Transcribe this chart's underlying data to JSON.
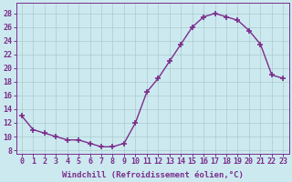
{
  "x": [
    0,
    1,
    2,
    3,
    4,
    5,
    6,
    7,
    8,
    9,
    10,
    11,
    12,
    13,
    14,
    15,
    16,
    17,
    18,
    19,
    20,
    21,
    22,
    23
  ],
  "y": [
    13,
    11,
    10.5,
    10,
    9.5,
    9.5,
    9,
    8.5,
    8.5,
    9,
    12,
    16.5,
    18.5,
    21,
    23.5,
    26,
    27.5,
    28,
    27.5,
    27,
    25.5,
    23.5,
    19,
    18.5
  ],
  "line_color": "#7b2d8b",
  "marker": "+",
  "marker_size": 4,
  "marker_linewidth": 1.2,
  "bg_color": "#cce9f0",
  "grid_color": "#aacccc",
  "xlabel": "Windchill (Refroidissement éolien,°C)",
  "xlabel_fontsize": 6.5,
  "yticks": [
    8,
    10,
    12,
    14,
    16,
    18,
    20,
    22,
    24,
    26,
    28
  ],
  "xlim": [
    -0.5,
    23.5
  ],
  "ylim": [
    7.5,
    29.5
  ],
  "tick_fontsize": 6.0,
  "tick_color": "#7b2d8b",
  "linewidth": 1.0
}
